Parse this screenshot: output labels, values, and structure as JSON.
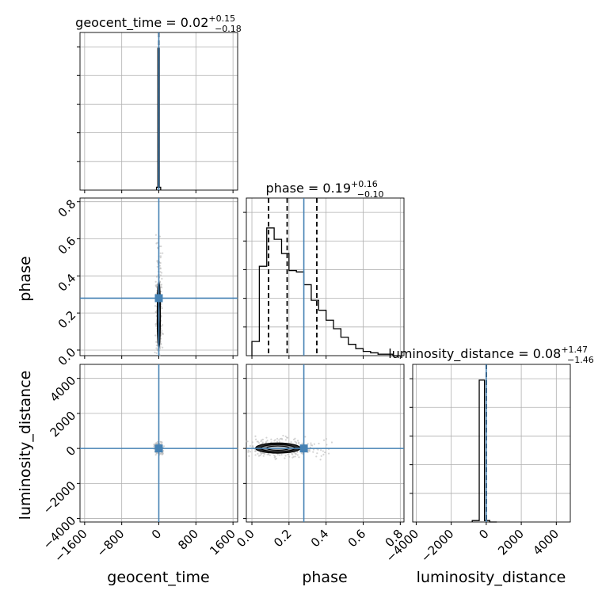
{
  "chart_data": {
    "type": "corner",
    "parameters": [
      "geocent_time",
      "phase",
      "luminosity_distance"
    ],
    "truth_color": "#4682b4",
    "hist_color": "#000000",
    "grid": true,
    "titles": [
      {
        "param": "geocent_time",
        "label": "geocent_time",
        "median": "0.02",
        "plus": "+0.15",
        "minus": "−0.18"
      },
      {
        "param": "phase",
        "label": "phase",
        "median": "0.19",
        "plus": "+0.16",
        "minus": "−0.10"
      },
      {
        "param": "luminosity_distance",
        "label": "luminosity_distance",
        "median": "0.08",
        "plus": "+1.47",
        "minus": "−1.46"
      }
    ],
    "axes": {
      "geocent_time": {
        "range": [
          -1700,
          1700
        ],
        "ticks": [
          -1600,
          -800,
          0,
          800,
          1600
        ],
        "tick_labels": [
          "−1600",
          "−800",
          "0",
          "800",
          "1600"
        ]
      },
      "phase": {
        "range": [
          -0.03,
          0.82
        ],
        "ticks": [
          0.0,
          0.2,
          0.4,
          0.6,
          0.8
        ],
        "tick_labels": [
          "0.0",
          "0.2",
          "0.4",
          "0.6",
          "0.8"
        ]
      },
      "luminosity_distance": {
        "range": [
          -4200,
          4800
        ],
        "ticks": [
          -4000,
          -2000,
          0,
          2000,
          4000
        ],
        "tick_labels": [
          "−4000",
          "−2000",
          "0",
          "2000",
          "4000"
        ]
      }
    },
    "truths": {
      "geocent_time": 0,
      "phase": 0.28,
      "luminosity_distance": 0
    },
    "quantiles": {
      "geocent_time": [
        -0.16,
        0.02,
        0.17
      ],
      "phase": [
        0.09,
        0.19,
        0.35
      ],
      "luminosity_distance": [
        -1.38,
        0.08,
        1.55
      ]
    },
    "histograms": {
      "geocent_time": {
        "edges": [
          -50,
          -20,
          10,
          40
        ],
        "counts": [
          0.02,
          1.0,
          0.02
        ]
      },
      "phase": {
        "edges": [
          0.0,
          0.02,
          0.04,
          0.06,
          0.08,
          0.1,
          0.12,
          0.14,
          0.16,
          0.18,
          0.2,
          0.22,
          0.24,
          0.26,
          0.28,
          0.3,
          0.32,
          0.34,
          0.36,
          0.38,
          0.4,
          0.42,
          0.44,
          0.46,
          0.48,
          0.5,
          0.52,
          0.54,
          0.56,
          0.58,
          0.6,
          0.62,
          0.64,
          0.66,
          0.68,
          0.7,
          0.72,
          0.74,
          0.76,
          0.78,
          0.8
        ],
        "counts": [
          0.1,
          0.1,
          0.63,
          0.63,
          0.9,
          0.9,
          0.82,
          0.82,
          0.72,
          0.72,
          0.6,
          0.6,
          0.59,
          0.59,
          0.5,
          0.5,
          0.39,
          0.39,
          0.32,
          0.32,
          0.25,
          0.25,
          0.19,
          0.19,
          0.13,
          0.13,
          0.08,
          0.08,
          0.05,
          0.05,
          0.03,
          0.03,
          0.02,
          0.02,
          0.01,
          0.01,
          0.01,
          0.01,
          0.0,
          0.0
        ]
      },
      "luminosity_distance": {
        "edges": [
          -800,
          -400,
          -100,
          200,
          600
        ],
        "counts": [
          0.01,
          1.0,
          0.01,
          0.0
        ]
      }
    },
    "contours": {
      "phase_vs_geocent_time": {
        "center_x": 0,
        "center_y": 0.19,
        "x_halfwidths": [
          8,
          20,
          34
        ],
        "y_halfwidths": [
          0.07,
          0.12,
          0.18
        ]
      },
      "luminosity_distance_vs_geocent_time": {
        "center_x": 0,
        "center_y": 0,
        "x_halfwidths": [
          20,
          30,
          40
        ],
        "y_halfwidths": [
          80,
          120,
          160
        ]
      },
      "luminosity_distance_vs_phase": {
        "center_x": 0.14,
        "center_y": 20,
        "x_halfwidths": [
          0.06,
          0.09,
          0.12
        ],
        "y_halfwidths": [
          120,
          200,
          290
        ]
      }
    }
  }
}
